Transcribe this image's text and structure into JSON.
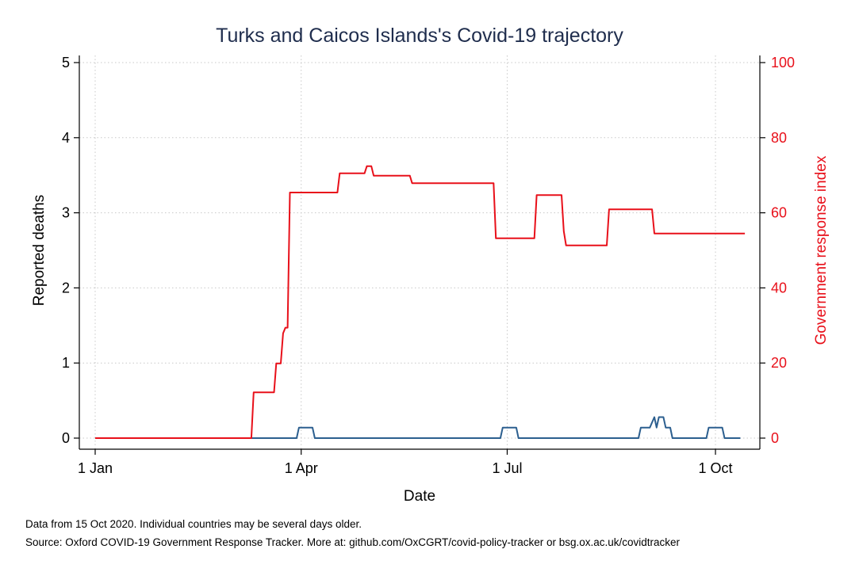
{
  "chart_data": {
    "type": "line",
    "title": "Turks and Caicos Islands's Covid-19 trajectory",
    "xlabel": "Date",
    "ylabel": "Reported deaths",
    "y2label": "Government response index",
    "x_ticks": [
      {
        "date": "2020-01-01",
        "label": "1 Jan"
      },
      {
        "date": "2020-04-01",
        "label": "1 Apr"
      },
      {
        "date": "2020-07-01",
        "label": "1 Jul"
      },
      {
        "date": "2020-10-01",
        "label": "1 Oct"
      }
    ],
    "xlim": [
      "2020-01-01",
      "2020-10-15"
    ],
    "ylim": [
      0,
      5
    ],
    "yticks": [
      0,
      1,
      2,
      3,
      4,
      5
    ],
    "y2lim": [
      0,
      100
    ],
    "y2ticks": [
      0,
      20,
      40,
      60,
      80,
      100
    ],
    "grid": true,
    "series": [
      {
        "name": "",
        "axis": "left",
        "color": "#2c5f8f",
        "points": [
          [
            "2020-01-01",
            0
          ],
          [
            "2020-03-30",
            0
          ],
          [
            "2020-03-31",
            0.14
          ],
          [
            "2020-04-06",
            0.14
          ],
          [
            "2020-04-07",
            0
          ],
          [
            "2020-06-28",
            0
          ],
          [
            "2020-06-29",
            0.14
          ],
          [
            "2020-07-05",
            0.14
          ],
          [
            "2020-07-06",
            0
          ],
          [
            "2020-08-28",
            0
          ],
          [
            "2020-08-29",
            0.14
          ],
          [
            "2020-09-02",
            0.14
          ],
          [
            "2020-09-04",
            0.28
          ],
          [
            "2020-09-05",
            0.14
          ],
          [
            "2020-09-06",
            0.28
          ],
          [
            "2020-09-08",
            0.28
          ],
          [
            "2020-09-09",
            0.14
          ],
          [
            "2020-09-11",
            0.14
          ],
          [
            "2020-09-12",
            0
          ],
          [
            "2020-09-27",
            0
          ],
          [
            "2020-09-28",
            0.14
          ],
          [
            "2020-10-04",
            0.14
          ],
          [
            "2020-10-05",
            0
          ],
          [
            "2020-10-12",
            0
          ]
        ]
      },
      {
        "name": "",
        "axis": "right",
        "color": "#e8101a",
        "points": [
          [
            "2020-01-01",
            0
          ],
          [
            "2020-03-10",
            0
          ],
          [
            "2020-03-11",
            12.2
          ],
          [
            "2020-03-20",
            12.2
          ],
          [
            "2020-03-21",
            19.9
          ],
          [
            "2020-03-23",
            19.9
          ],
          [
            "2020-03-24",
            27.9
          ],
          [
            "2020-03-25",
            29.4
          ],
          [
            "2020-03-26",
            29.4
          ],
          [
            "2020-03-27",
            65.4
          ],
          [
            "2020-04-17",
            65.4
          ],
          [
            "2020-04-18",
            70.5
          ],
          [
            "2020-04-29",
            70.5
          ],
          [
            "2020-04-30",
            72.4
          ],
          [
            "2020-05-02",
            72.4
          ],
          [
            "2020-05-03",
            69.9
          ],
          [
            "2020-05-19",
            69.9
          ],
          [
            "2020-05-20",
            67.9
          ],
          [
            "2020-06-25",
            67.9
          ],
          [
            "2020-06-26",
            53.2
          ],
          [
            "2020-07-13",
            53.2
          ],
          [
            "2020-07-14",
            64.7
          ],
          [
            "2020-07-25",
            64.7
          ],
          [
            "2020-07-26",
            55.1
          ],
          [
            "2020-07-27",
            51.3
          ],
          [
            "2020-08-14",
            51.3
          ],
          [
            "2020-08-15",
            60.9
          ],
          [
            "2020-09-03",
            60.9
          ],
          [
            "2020-09-04",
            54.5
          ],
          [
            "2020-10-14",
            54.5
          ]
        ]
      }
    ]
  },
  "notes": {
    "line1": "Data from 15 Oct 2020. Individual countries may be several days older.",
    "line2": "Source: Oxford COVID-19 Government Response Tracker. More at: github.com/OxCGRT/covid-policy-tracker or bsg.ox.ac.uk/covidtracker"
  }
}
